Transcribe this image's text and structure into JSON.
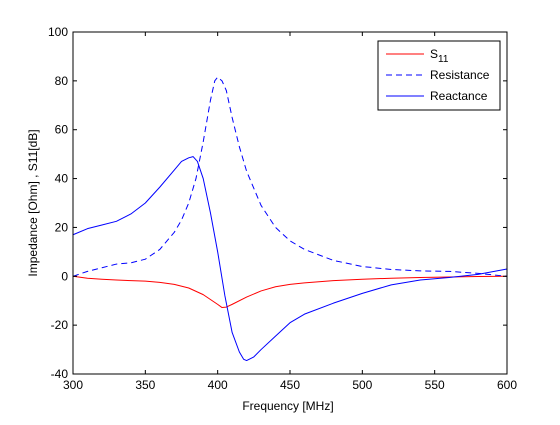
{
  "chart_data": {
    "type": "line",
    "xlabel": "Frequency [MHz]",
    "ylabel": "Impedance [Ohm] , S11[dB]",
    "xlim": [
      300,
      600
    ],
    "ylim": [
      -40,
      100
    ],
    "xticks": [
      300,
      350,
      400,
      450,
      500,
      550,
      600
    ],
    "yticks": [
      -40,
      -20,
      0,
      20,
      40,
      60,
      80,
      100
    ],
    "grid": false,
    "legend_position": "top-right",
    "series": [
      {
        "name": "S11",
        "name_main": "S",
        "name_sub": "11",
        "color": "#ff0000",
        "dash": "solid",
        "x": [
          300,
          310,
          320,
          330,
          340,
          350,
          360,
          370,
          380,
          390,
          395,
          400,
          403,
          406,
          410,
          420,
          430,
          440,
          450,
          460,
          480,
          500,
          520,
          540,
          560,
          580,
          600
        ],
        "y": [
          0,
          -0.8,
          -1.2,
          -1.5,
          -1.8,
          -2.0,
          -2.5,
          -3.3,
          -4.8,
          -7.5,
          -9.5,
          -11.5,
          -12.8,
          -12.6,
          -11.5,
          -8.5,
          -6.0,
          -4.3,
          -3.3,
          -2.7,
          -1.8,
          -1.2,
          -0.8,
          -0.5,
          -0.3,
          -0.1,
          0
        ]
      },
      {
        "name": "Resistance",
        "color": "#0000ff",
        "dash": "dashed",
        "x": [
          300,
          310,
          320,
          330,
          340,
          350,
          360,
          370,
          375,
          380,
          385,
          390,
          395,
          398,
          400,
          403,
          406,
          410,
          415,
          420,
          430,
          440,
          450,
          460,
          480,
          500,
          520,
          540,
          560,
          580,
          600
        ],
        "y": [
          0,
          2,
          3.5,
          5,
          5.5,
          7,
          11,
          18,
          23,
          30,
          40,
          55,
          72,
          80,
          81.5,
          80,
          76,
          65,
          53,
          43,
          29,
          20,
          14.5,
          11,
          6.5,
          4,
          2.8,
          2.2,
          2,
          1.2,
          0
        ]
      },
      {
        "name": "Reactance",
        "color": "#0000ff",
        "dash": "solid",
        "x": [
          300,
          310,
          320,
          330,
          340,
          350,
          360,
          370,
          375,
          380,
          383,
          386,
          390,
          395,
          400,
          405,
          410,
          415,
          418,
          420,
          425,
          430,
          440,
          450,
          460,
          480,
          500,
          520,
          540,
          560,
          580,
          600
        ],
        "y": [
          17,
          19.5,
          21,
          22.5,
          25.5,
          30,
          36.5,
          43.5,
          47,
          48.5,
          49,
          47,
          40,
          26,
          10,
          -8,
          -23,
          -31,
          -34,
          -34.5,
          -33,
          -30,
          -24.5,
          -19,
          -15.5,
          -11,
          -7,
          -3.5,
          -1.5,
          -0.5,
          0.8,
          3
        ]
      }
    ]
  }
}
